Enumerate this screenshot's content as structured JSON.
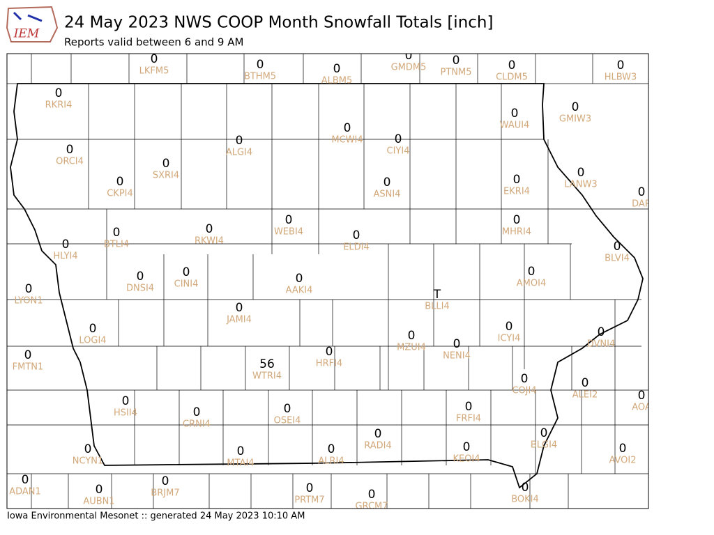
{
  "logo_text": "IEM",
  "header": {
    "title": "24 May 2023 NWS COOP Month Snowfall Totals [inch]",
    "subtitle": "Reports valid between 6 and 9 AM"
  },
  "stations": [
    {
      "id": "LKFM5",
      "value": 0
    },
    {
      "id": "BTHM5",
      "value": 0
    },
    {
      "id": "ALBM5",
      "value": 0
    },
    {
      "id": "GMDM5",
      "value": 0
    },
    {
      "id": "PTNM5",
      "value": 0
    },
    {
      "id": "CLDM5",
      "value": 0
    },
    {
      "id": "HLBW3",
      "value": 0
    },
    {
      "id": "RKRI4",
      "value": 0
    },
    {
      "id": "ORCI4",
      "value": 0
    },
    {
      "id": "ALGI4",
      "value": 0
    },
    {
      "id": "MCWI4",
      "value": 0
    },
    {
      "id": "CIYI4",
      "value": 0
    },
    {
      "id": "WAUI4",
      "value": 0
    },
    {
      "id": "GMIW3",
      "value": 0
    },
    {
      "id": "SXRI4",
      "value": 0
    },
    {
      "id": "CKPI4",
      "value": 0
    },
    {
      "id": "ASNI4",
      "value": 0
    },
    {
      "id": "EKRI4",
      "value": 0
    },
    {
      "id": "LANW3",
      "value": 0
    },
    {
      "id": "DAR",
      "value": 0
    },
    {
      "id": "RKWI4",
      "value": 0
    },
    {
      "id": "WEBI4",
      "value": 0
    },
    {
      "id": "BTLI4",
      "value": 0
    },
    {
      "id": "ELDI4",
      "value": 0
    },
    {
      "id": "MHRI4",
      "value": 0
    },
    {
      "id": "HLYI4",
      "value": 0
    },
    {
      "id": "BLVI4",
      "value": 0
    },
    {
      "id": "DNSI4",
      "value": 0
    },
    {
      "id": "CINI4",
      "value": 0
    },
    {
      "id": "AAKI4",
      "value": 0
    },
    {
      "id": "AMOI4",
      "value": 0
    },
    {
      "id": "LYON1",
      "value": 0
    },
    {
      "id": "BLLI4",
      "value": "T"
    },
    {
      "id": "JAMI4",
      "value": 0
    },
    {
      "id": "LOGI4",
      "value": 0
    },
    {
      "id": "ICYI4",
      "value": 0
    },
    {
      "id": "DVNI4",
      "value": 0
    },
    {
      "id": "MZUI4",
      "value": 0
    },
    {
      "id": "NENI4",
      "value": 0
    },
    {
      "id": "HRFI4",
      "value": 0
    },
    {
      "id": "FMTN1",
      "value": 0
    },
    {
      "id": "WTRI4",
      "value": 56
    },
    {
      "id": "COJI4",
      "value": 0
    },
    {
      "id": "ALEI2",
      "value": 0
    },
    {
      "id": "AOA",
      "value": 0
    },
    {
      "id": "HSII4",
      "value": 0
    },
    {
      "id": "CRNI4",
      "value": 0
    },
    {
      "id": "OSEI4",
      "value": 0
    },
    {
      "id": "FRFI4",
      "value": 0
    },
    {
      "id": "RADI4",
      "value": 0
    },
    {
      "id": "BLGI4",
      "value": 0
    },
    {
      "id": "KEOI4",
      "value": 0
    },
    {
      "id": "ALRI4",
      "value": 0
    },
    {
      "id": "AVOI2",
      "value": 0
    },
    {
      "id": "MTAI4",
      "value": 0
    },
    {
      "id": "NCYN1",
      "value": 0
    },
    {
      "id": "ADAN1",
      "value": 0
    },
    {
      "id": "BRJM7",
      "value": 0
    },
    {
      "id": "AUBN1",
      "value": 0
    },
    {
      "id": "PRTM7",
      "value": 0
    },
    {
      "id": "GRCM7",
      "value": 0
    },
    {
      "id": "BOKI4",
      "value": 0
    }
  ],
  "footer": "Iowa Environmental Mesonet :: generated 24 May 2023 10:10 AM"
}
